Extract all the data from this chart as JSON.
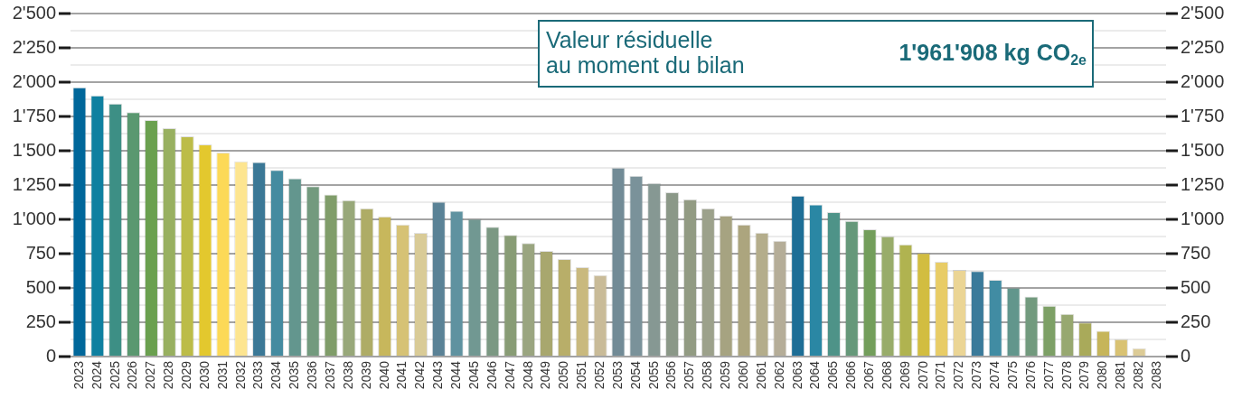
{
  "chart_data": {
    "type": "bar",
    "annotations": [
      "Valeur résiduelle\nau moment du bilan",
      "1'961'908 kg CO$_{2e}$"
    ],
    "categories": [
      "2023",
      "2024",
      "2025",
      "2026",
      "2027",
      "2028",
      "2029",
      "2030",
      "2031",
      "2032",
      "2033",
      "2034",
      "2035",
      "2036",
      "2037",
      "2038",
      "2039",
      "2040",
      "2041",
      "2042",
      "2043",
      "2044",
      "2045",
      "2046",
      "2047",
      "2048",
      "2049",
      "2050",
      "2051",
      "2052",
      "2053",
      "2054",
      "2055",
      "2056",
      "2057",
      "2058",
      "2059",
      "2060",
      "2061",
      "2062",
      "2063",
      "2064",
      "2065",
      "2066",
      "2067",
      "2068",
      "2069",
      "2070",
      "2071",
      "2072",
      "2073",
      "2074",
      "2075",
      "2076",
      "2077",
      "2078",
      "2079",
      "2080",
      "2081",
      "2082",
      "2083"
    ],
    "values": [
      1962,
      1903,
      1844,
      1782,
      1723,
      1664,
      1605,
      1546,
      1487,
      1422,
      1417,
      1360,
      1299,
      1242,
      1181,
      1139,
      1080,
      1021,
      962,
      901,
      1128,
      1063,
      1004,
      945,
      886,
      827,
      770,
      711,
      652,
      593,
      1376,
      1317,
      1264,
      1198,
      1146,
      1080,
      1028,
      962,
      903,
      844,
      1172,
      1109,
      1052,
      989,
      927,
      877,
      818,
      755,
      691,
      632,
      623,
      560,
      501,
      437,
      370,
      311,
      249,
      188,
      127,
      61,
      0
    ],
    "colors": [
      "#00679a",
      "#0f80a0",
      "#3d8f85",
      "#5a9870",
      "#6aa04f",
      "#98b060",
      "#bcbc48",
      "#e3c82e",
      "#fcd957",
      "#fde590",
      "#3b7896",
      "#458ba0",
      "#63968e",
      "#739a7e",
      "#809d6a",
      "#98a87a",
      "#aeac66",
      "#c7b75c",
      "#d6c275",
      "#d9cb97",
      "#5a8296",
      "#5f92a0",
      "#719892",
      "#7b9883",
      "#889c75",
      "#9aa580",
      "#a8a76e",
      "#b8ae69",
      "#c9b97e",
      "#c9bb98",
      "#728b96",
      "#7a929a",
      "#869893",
      "#8b9888",
      "#929b83",
      "#9ca18b",
      "#a6a381",
      "#aca57e",
      "#b4ad8b",
      "#b5ad98",
      "#1e6e96",
      "#2a87a4",
      "#4e9388",
      "#66987a",
      "#739e5b",
      "#98ac6a",
      "#b0b350",
      "#d2bd40",
      "#e8cc66",
      "#ebd595",
      "#3a7a9a",
      "#418ca3",
      "#62968c",
      "#729a7e",
      "#7da066",
      "#97a870",
      "#a9aa5a",
      "#c6b55a",
      "#d9c272",
      "#dccb96",
      "#e8dca8"
    ],
    "ylim": [
      0,
      2500
    ],
    "yticks": [
      0,
      {
        "value": 125,
        "label": null
      },
      250,
      {
        "value": 375,
        "label": null
      },
      500,
      {
        "value": 625,
        "label": null
      },
      750,
      {
        "value": 875,
        "label": null
      },
      {
        "value": 1000,
        "label": "1'000"
      },
      {
        "value": 1125,
        "label": null
      },
      {
        "value": 1250,
        "label": "1'250"
      },
      {
        "value": 1375,
        "label": null
      },
      {
        "value": 1500,
        "label": "1'500"
      },
      {
        "value": 1625,
        "label": null
      },
      {
        "value": 1750,
        "label": "1'750"
      },
      {
        "value": 1875,
        "label": null
      },
      {
        "value": 2000,
        "label": "2'000"
      },
      {
        "value": 2125,
        "label": null
      },
      {
        "value": 2250,
        "label": "2'250"
      },
      {
        "value": 2375,
        "label": null
      },
      {
        "value": 2500,
        "label": "2'500"
      }
    ],
    "y2lim": [
      0,
      2500
    ],
    "y2ticks": [
      0,
      {
        "value": 125,
        "label": null
      },
      250,
      {
        "value": 375,
        "label": null
      },
      500,
      {
        "value": 625,
        "label": null
      },
      750,
      {
        "value": 875,
        "label": null
      },
      {
        "value": 1000,
        "label": "1'000"
      },
      {
        "value": 1125,
        "label": null
      },
      {
        "value": 1250,
        "label": "1'250"
      },
      {
        "value": 1375,
        "label": null
      },
      {
        "value": 1500,
        "label": "1'500"
      },
      {
        "value": 1625,
        "label": null
      },
      {
        "value": 1750,
        "label": "1'750"
      },
      {
        "value": 1875,
        "label": null
      },
      {
        "value": 2000,
        "label": "2'000"
      },
      {
        "value": 2125,
        "label": null
      },
      {
        "value": 2250,
        "label": "2'250"
      },
      {
        "value": 2375,
        "label": null
      },
      {
        "value": 2500,
        "label": "2'500"
      }
    ],
    "grid": "y"
  }
}
